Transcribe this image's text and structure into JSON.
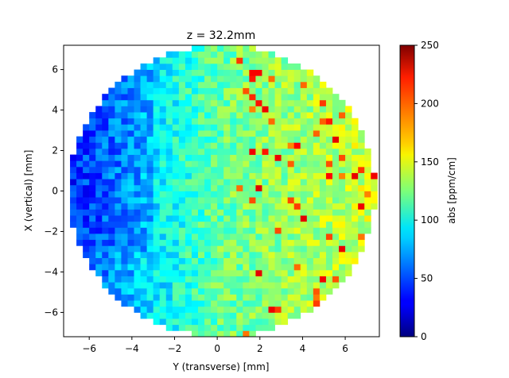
{
  "chart_data": {
    "type": "heatmap",
    "title": "z = 32.2mm",
    "xlabel": "Y (transverse) [mm]",
    "ylabel": "X (vertical) [mm]",
    "xlim": [
      -7.2,
      7.6
    ],
    "ylim": [
      -7.2,
      7.2
    ],
    "x_ticks": [
      -6,
      -4,
      -2,
      0,
      2,
      4,
      6
    ],
    "y_ticks": [
      -6,
      -4,
      -2,
      0,
      2,
      4,
      6
    ],
    "grid": false,
    "colormap": "jet",
    "colorbar": {
      "label": "abs [ppm/cm]",
      "vmin": 0,
      "vmax": 250,
      "ticks": [
        0,
        50,
        100,
        150,
        200,
        250
      ]
    },
    "cell_size_mm": 0.3,
    "circle_center_mm": [
      0.2,
      0
    ],
    "circle_radius_mm": 7.2,
    "value_field": {
      "description": "absorption map; low values (about 30-60 ppm/cm) on the left (Y < -4 mm), around 100-150 ppm/cm across the center, rising to 150-230 ppm/cm with scattered hot pixels on the right (Y > 2 mm)",
      "left_mean": 45,
      "center_mean": 120,
      "right_mean": 145,
      "noise_range": 40,
      "hot_pixel_max": 230
    }
  }
}
